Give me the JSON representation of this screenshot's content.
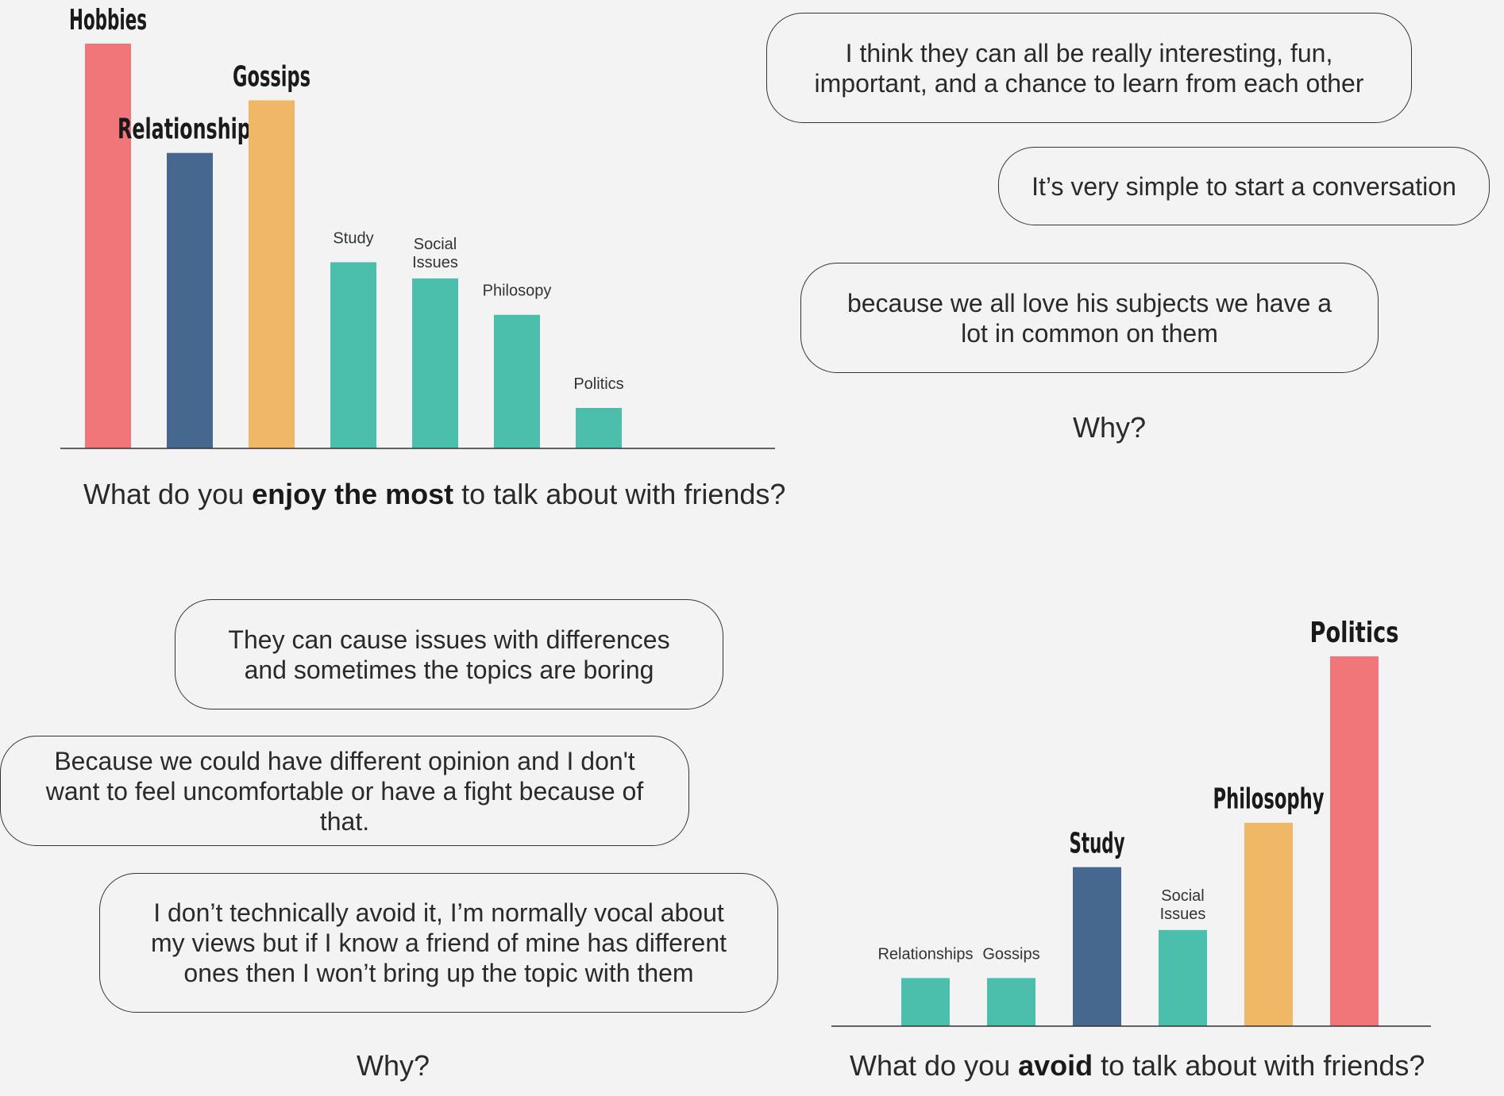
{
  "chart_data": [
    {
      "type": "bar",
      "title": "",
      "question_prefix": "What do you ",
      "question_emphasis": "enjoy the most",
      "question_suffix": " to talk about with friends?",
      "categories": [
        "Hobbies",
        "Relationships",
        "Gossips",
        "Study",
        "Social Issues",
        "Philosopy",
        "Politics"
      ],
      "values": [
        100,
        73,
        86,
        46,
        42,
        33,
        10
      ],
      "highlight": [
        true,
        true,
        true,
        false,
        false,
        false,
        false
      ],
      "colors": [
        "#f07679",
        "#46688f",
        "#f0b866",
        "#4bbfab",
        "#4bbfab",
        "#4bbfab",
        "#4bbfab"
      ],
      "ylim": [
        0,
        100
      ],
      "grid": false,
      "legend": "none"
    },
    {
      "type": "bar",
      "title": "",
      "question_prefix": "What do you ",
      "question_emphasis": "avoid",
      "question_suffix": " to talk about with friends?",
      "categories": [
        "Relationships",
        "Gossips",
        "Study",
        "Social Issues",
        "Philosophy",
        "Politics"
      ],
      "values": [
        13,
        13,
        43,
        26,
        55,
        100
      ],
      "highlight": [
        false,
        false,
        true,
        false,
        true,
        true
      ],
      "colors": [
        "#4bbfab",
        "#4bbfab",
        "#46688f",
        "#4bbfab",
        "#f0b866",
        "#f07679"
      ],
      "ylim": [
        0,
        100
      ],
      "grid": false,
      "legend": "none"
    }
  ],
  "enjoy_why": {
    "label": "Why?",
    "answers": [
      "I think they can all be really interesting, fun, important, and a chance to learn from each other",
      "It’s very simple to start a conversation",
      "because we all love his subjects we have a lot in common on them"
    ]
  },
  "avoid_why": {
    "label": "Why?",
    "answers": [
      "They can cause issues with differences and sometimes the topics are boring",
      "Because we could have different opinion and I don't want to feel uncomfortable or have a fight because of that.",
      "I don’t technically avoid it, I’m normally vocal about my views but if I know a friend of mine has different ones then I won’t bring up the topic with them"
    ]
  }
}
